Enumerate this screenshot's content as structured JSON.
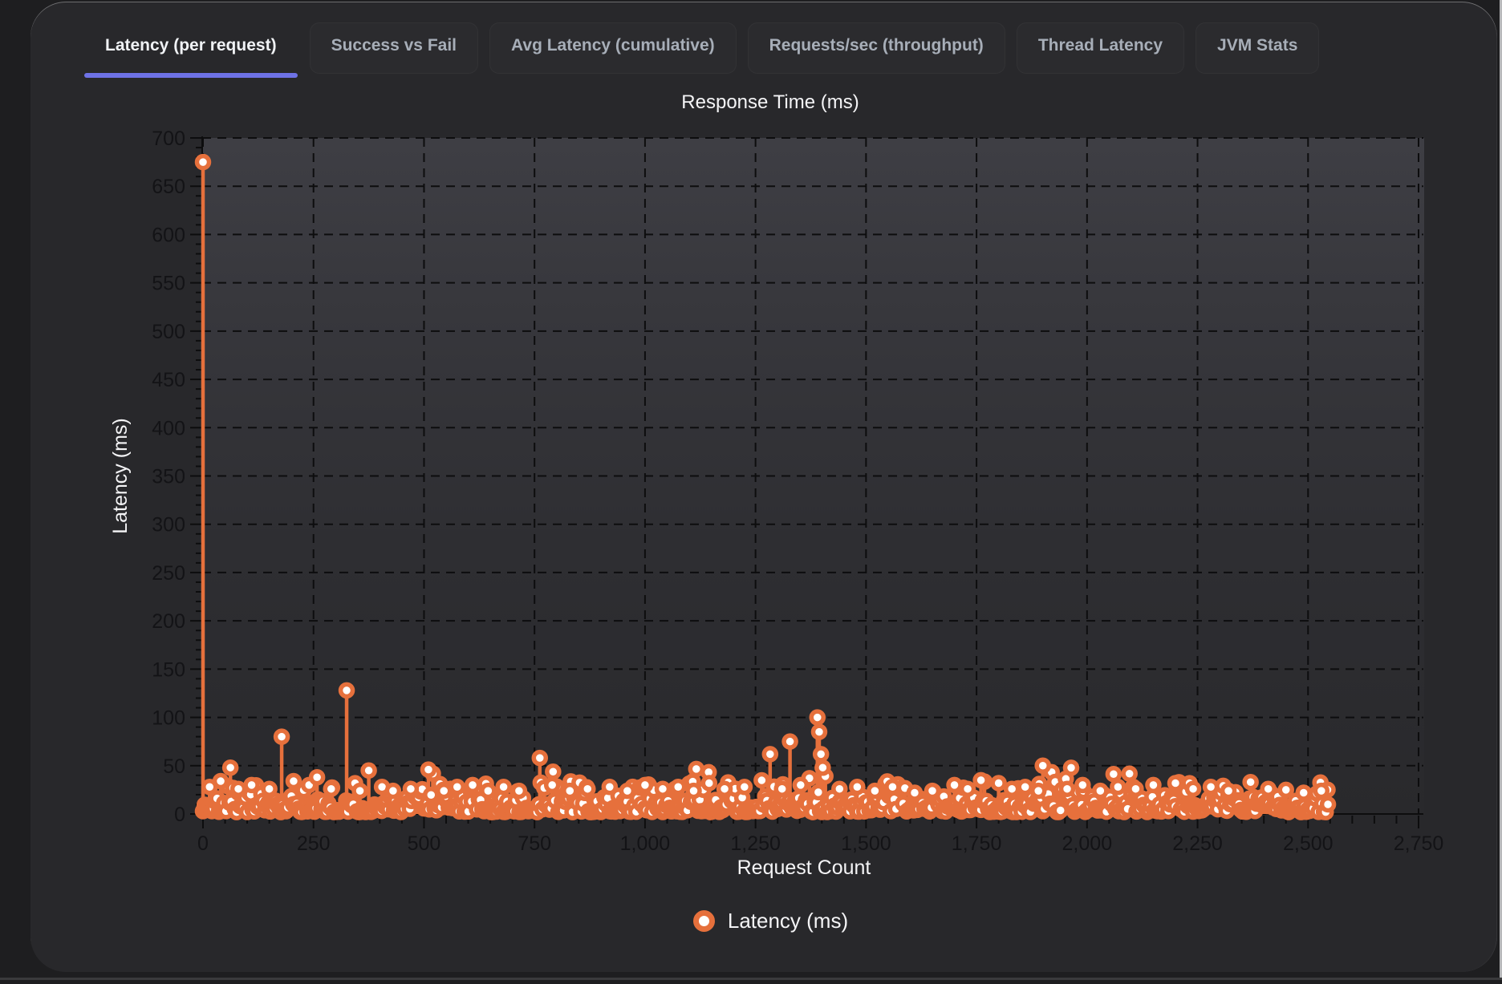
{
  "tabs": {
    "items": [
      {
        "label": "Latency (per request)",
        "active": true
      },
      {
        "label": "Success vs Fail",
        "active": false
      },
      {
        "label": "Avg Latency (cumulative)",
        "active": false
      },
      {
        "label": "Requests/sec (throughput)",
        "active": false
      },
      {
        "label": "Thread Latency",
        "active": false
      },
      {
        "label": "JVM Stats",
        "active": false
      }
    ],
    "active_underline_color": "#6e72e6"
  },
  "chart_data": {
    "type": "scatter",
    "style": "lollipop",
    "title": "Response Time (ms)",
    "xlabel": "Request Count",
    "ylabel": "Latency (ms)",
    "xlim": [
      0,
      2750
    ],
    "ylim": [
      0,
      700
    ],
    "x_tick_step": 250,
    "x_minor_step": 50,
    "y_tick_step": 50,
    "y_minor_step": 10,
    "x_tick_labels": [
      "0",
      "250",
      "500",
      "750",
      "1,000",
      "1,250",
      "1,500",
      "1,750",
      "2,000",
      "2,250",
      "2,500",
      "2,750"
    ],
    "y_tick_labels": [
      "0",
      "50",
      "100",
      "150",
      "200",
      "250",
      "300",
      "350",
      "400",
      "450",
      "500",
      "550",
      "600",
      "650",
      "700"
    ],
    "grid": "dashed",
    "legend_position": "bottom",
    "legend": [
      {
        "label": "Latency (ms)",
        "color": "#e6703c"
      }
    ],
    "series_color": "#e6703c",
    "marker_fill": "#ffffff",
    "spikes": [
      [
        0,
        675
      ],
      [
        15,
        28
      ],
      [
        40,
        34
      ],
      [
        62,
        48
      ],
      [
        80,
        26
      ],
      [
        110,
        30
      ],
      [
        150,
        26
      ],
      [
        178,
        80
      ],
      [
        205,
        34
      ],
      [
        240,
        30
      ],
      [
        258,
        38
      ],
      [
        290,
        26
      ],
      [
        325,
        128
      ],
      [
        355,
        24
      ],
      [
        375,
        45
      ],
      [
        405,
        28
      ],
      [
        430,
        24
      ],
      [
        470,
        26
      ],
      [
        510,
        46
      ],
      [
        545,
        24
      ],
      [
        575,
        28
      ],
      [
        610,
        30
      ],
      [
        645,
        24
      ],
      [
        680,
        28
      ],
      [
        715,
        24
      ],
      [
        762,
        58
      ],
      [
        790,
        30
      ],
      [
        830,
        24
      ],
      [
        870,
        26
      ],
      [
        920,
        28
      ],
      [
        960,
        24
      ],
      [
        1000,
        30
      ],
      [
        1040,
        26
      ],
      [
        1075,
        28
      ],
      [
        1110,
        24
      ],
      [
        1145,
        32
      ],
      [
        1180,
        26
      ],
      [
        1225,
        28
      ],
      [
        1283,
        62
      ],
      [
        1310,
        26
      ],
      [
        1328,
        75
      ],
      [
        1352,
        30
      ],
      [
        1390,
        100
      ],
      [
        1394,
        85
      ],
      [
        1398,
        62
      ],
      [
        1402,
        48
      ],
      [
        1440,
        26
      ],
      [
        1480,
        28
      ],
      [
        1520,
        24
      ],
      [
        1560,
        28
      ],
      [
        1610,
        22
      ],
      [
        1650,
        24
      ],
      [
        1700,
        30
      ],
      [
        1730,
        26
      ],
      [
        1760,
        35
      ],
      [
        1800,
        32
      ],
      [
        1830,
        26
      ],
      [
        1860,
        28
      ],
      [
        1890,
        24
      ],
      [
        1900,
        50
      ],
      [
        1955,
        26
      ],
      [
        1990,
        30
      ],
      [
        2030,
        24
      ],
      [
        2070,
        28
      ],
      [
        2110,
        26
      ],
      [
        2150,
        30
      ],
      [
        2200,
        32
      ],
      [
        2240,
        26
      ],
      [
        2280,
        28
      ],
      [
        2320,
        24
      ],
      [
        2370,
        33
      ],
      [
        2410,
        26
      ],
      [
        2450,
        25
      ],
      [
        2490,
        22
      ],
      [
        2530,
        24
      ],
      [
        2545,
        10
      ]
    ],
    "baseline": {
      "from": 0,
      "to": 2545,
      "step": 4,
      "seed": 1337,
      "base_min": 2,
      "base_max": 18,
      "bump_prob": 0.16,
      "bump_min": 18,
      "bump_max": 34,
      "rare_prob": 0.02,
      "rare_min": 34,
      "rare_max": 48
    }
  },
  "colors": {
    "card_bg": "#28282b",
    "plot_gradient_top": "#3e3e44",
    "plot_gradient_bottom": "#29292c",
    "gridline": "#0d0d0e",
    "tick_label": "#131316",
    "axis_title": "#f4f4f6",
    "chart_title": "#f4f4f6",
    "series": "#e6703c"
  }
}
